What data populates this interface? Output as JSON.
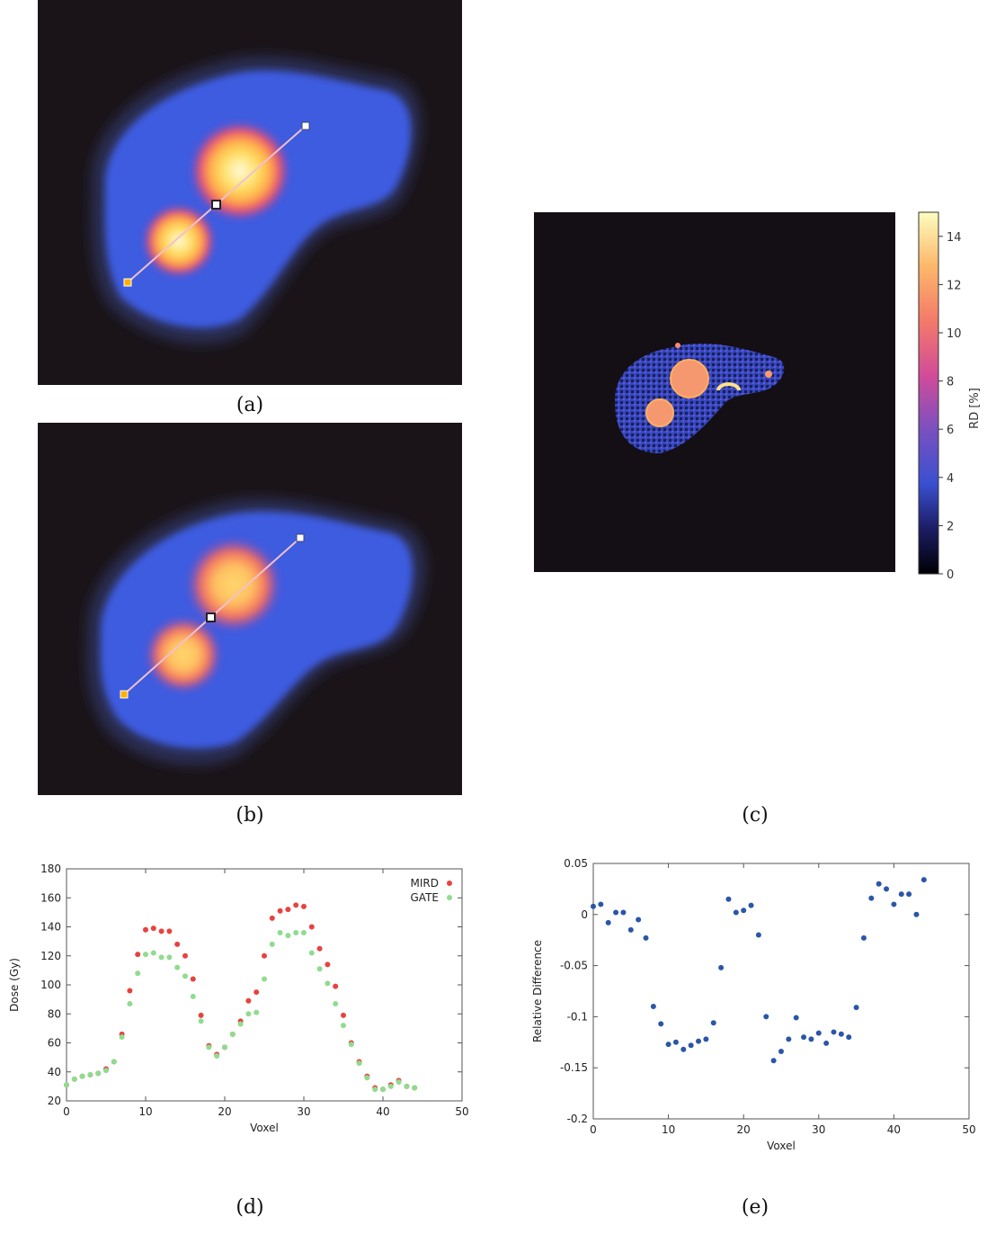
{
  "captions": {
    "a": "(a)",
    "b": "(b)",
    "c": "(c)",
    "d": "(d)",
    "e": "(e)"
  },
  "colors": {
    "background_dark": "#1a1418",
    "liver_blue": "#3c5be0",
    "hot_yellow": "#ffe066",
    "mird": "#e8423f",
    "gate": "#8fdc8f",
    "scatter_blue": "#2b56a8"
  },
  "chart_data": [
    {
      "panel": "c",
      "type": "heatmap",
      "colorbar": {
        "label": "RD [%]",
        "ticks": [
          0,
          2,
          4,
          6,
          8,
          10,
          12,
          14
        ],
        "range": [
          0,
          15
        ]
      }
    },
    {
      "panel": "d",
      "type": "scatter",
      "xlabel": "Voxel",
      "ylabel": "Dose (Gy)",
      "xlim": [
        0,
        50
      ],
      "ylim": [
        20,
        180
      ],
      "xticks": [
        0,
        10,
        20,
        30,
        40,
        50
      ],
      "yticks": [
        20,
        40,
        60,
        80,
        100,
        120,
        140,
        160,
        180
      ],
      "legend": "top-right",
      "grid": false,
      "series": [
        {
          "name": "MIRD",
          "color": "#e8423f",
          "x": [
            0,
            1,
            2,
            3,
            4,
            5,
            6,
            7,
            8,
            9,
            10,
            11,
            12,
            13,
            14,
            15,
            16,
            17,
            18,
            19,
            20,
            21,
            22,
            23,
            24,
            25,
            26,
            27,
            28,
            29,
            30,
            31,
            32,
            33,
            34,
            35,
            36,
            37,
            38,
            39,
            40,
            41,
            42,
            43,
            44
          ],
          "y": [
            31,
            35,
            37,
            38,
            39,
            42,
            47,
            66,
            96,
            121,
            138,
            139,
            137,
            137,
            128,
            120,
            104,
            79,
            58,
            52,
            57,
            66,
            75,
            89,
            95,
            120,
            146,
            151,
            152,
            155,
            154,
            140,
            125,
            114,
            99,
            79,
            60,
            47,
            37,
            29,
            28,
            31,
            34,
            30,
            29
          ]
        },
        {
          "name": "GATE",
          "color": "#8fdc8f",
          "x": [
            0,
            1,
            2,
            3,
            4,
            5,
            6,
            7,
            8,
            9,
            10,
            11,
            12,
            13,
            14,
            15,
            16,
            17,
            18,
            19,
            20,
            21,
            22,
            23,
            24,
            25,
            26,
            27,
            28,
            29,
            30,
            31,
            32,
            33,
            34,
            35,
            36,
            37,
            38,
            39,
            40,
            41,
            42,
            43,
            44
          ],
          "y": [
            31,
            35,
            37,
            38,
            39,
            41,
            47,
            64,
            87,
            108,
            121,
            122,
            119,
            119,
            112,
            106,
            92,
            75,
            57,
            51,
            57,
            66,
            73,
            80,
            81,
            104,
            128,
            136,
            134,
            136,
            136,
            122,
            111,
            101,
            87,
            72,
            59,
            46,
            36,
            28,
            28,
            30,
            33,
            30,
            29
          ]
        }
      ]
    },
    {
      "panel": "e",
      "type": "scatter",
      "xlabel": "Voxel",
      "ylabel": "Relative Difference",
      "xlim": [
        0,
        50
      ],
      "ylim": [
        -0.2,
        0.05
      ],
      "xticks": [
        0,
        10,
        20,
        30,
        40,
        50
      ],
      "yticks": [
        -0.2,
        -0.15,
        -0.1,
        -0.05,
        0,
        0.05
      ],
      "ytick_labels": [
        "-0.2",
        "-0.15",
        "-0.1",
        "-0.05",
        "0",
        "0.05"
      ],
      "grid": false,
      "series": [
        {
          "color": "#2b56a8",
          "x": [
            0,
            1,
            2,
            3,
            4,
            5,
            6,
            7,
            8,
            9,
            10,
            11,
            12,
            13,
            14,
            15,
            16,
            17,
            18,
            19,
            20,
            21,
            22,
            23,
            24,
            25,
            26,
            27,
            28,
            29,
            30,
            31,
            32,
            33,
            34,
            35,
            36,
            37,
            38,
            39,
            40,
            41,
            42,
            43,
            44
          ],
          "y": [
            0.008,
            0.01,
            -0.008,
            0.002,
            0.002,
            -0.015,
            -0.005,
            -0.023,
            -0.09,
            -0.107,
            -0.127,
            -0.125,
            -0.132,
            -0.128,
            -0.124,
            -0.122,
            -0.106,
            -0.052,
            0.015,
            0.002,
            0.004,
            0.009,
            -0.02,
            -0.1,
            -0.143,
            -0.134,
            -0.122,
            -0.101,
            -0.12,
            -0.122,
            -0.116,
            -0.126,
            -0.115,
            -0.117,
            -0.12,
            -0.091,
            -0.023,
            0.016,
            0.03,
            0.025,
            0.01,
            0.02,
            0.02,
            0,
            0.034
          ]
        }
      ]
    }
  ]
}
